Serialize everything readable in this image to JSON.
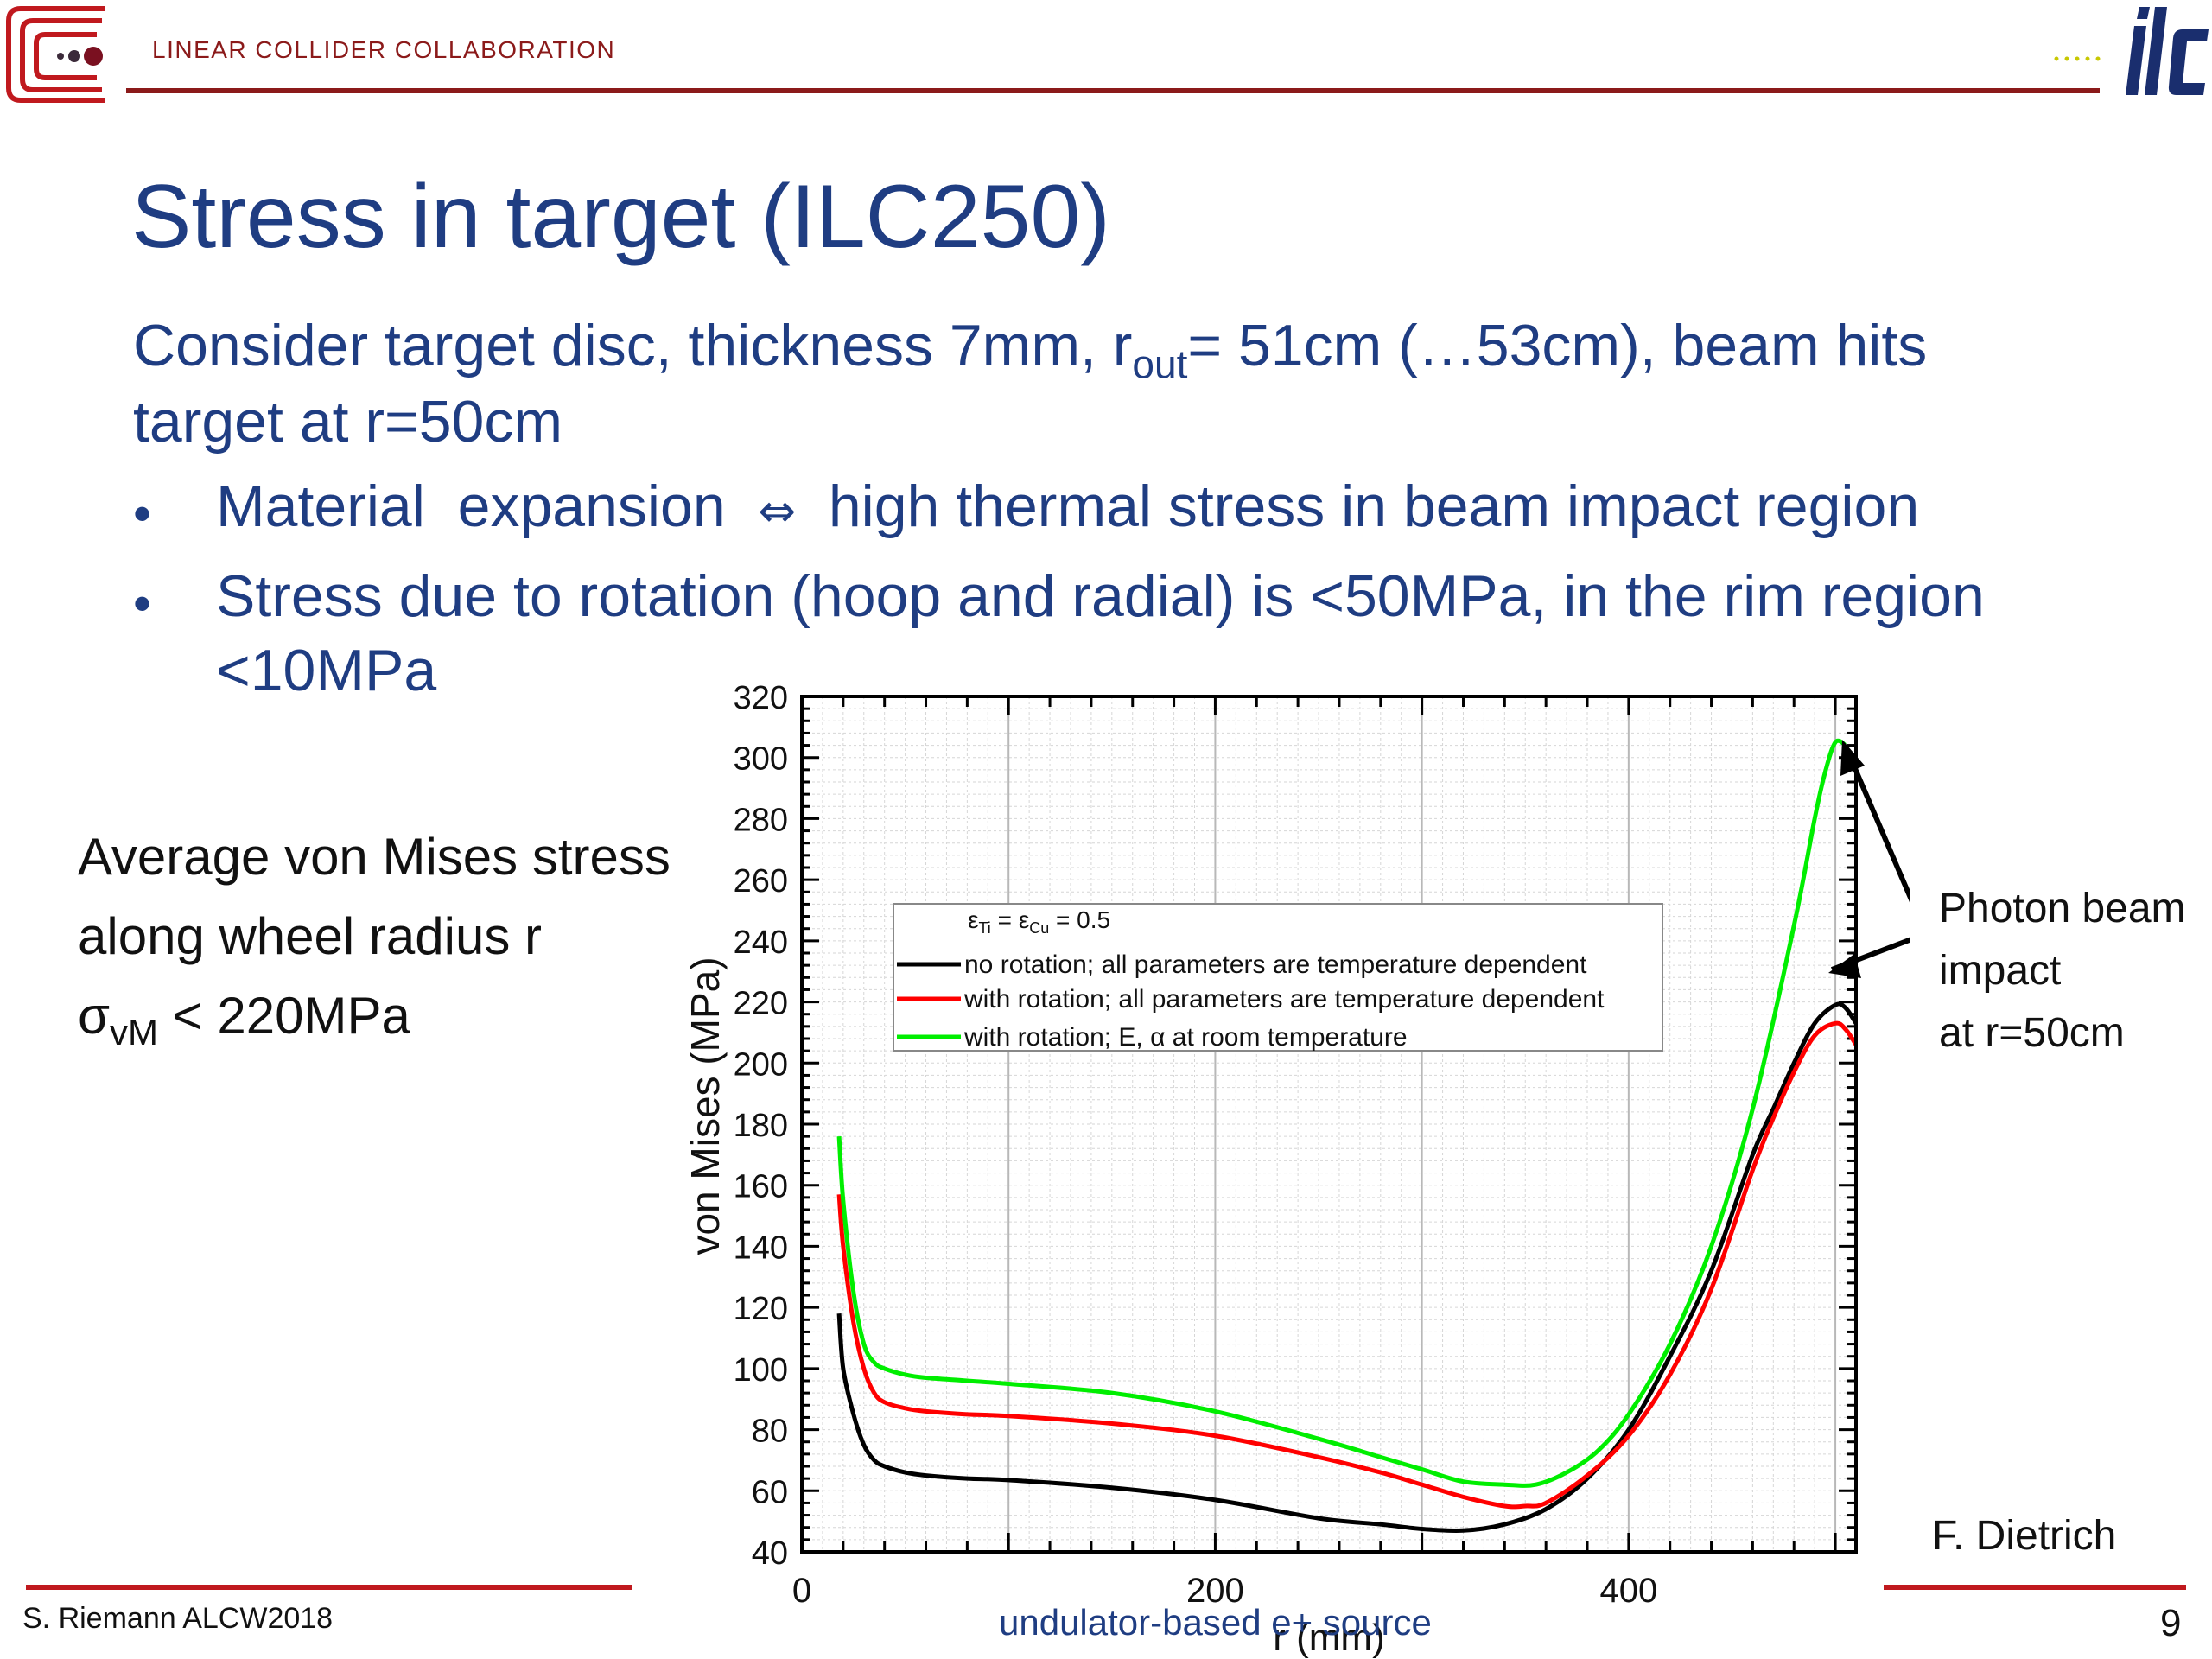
{
  "header": {
    "collaboration": "LINEAR COLLIDER COLLABORATION",
    "colors": {
      "dark_red": "#8b1a1a",
      "red": "#c0191e",
      "navy": "#1f3d82"
    }
  },
  "title": "Stress in target (ILC250)",
  "intro": {
    "line1_a": "Consider target disc, thickness 7mm, r",
    "line1_sub": "out",
    "line1_b": "= 51cm (…53cm), beam hits",
    "line2": "target at r=50cm"
  },
  "bullets": [
    {
      "bullet": "•",
      "a": "Material  expansion  ",
      "sym": "⇔",
      "b": "  high thermal stress in beam impact region"
    },
    {
      "bullet": "•",
      "text": "Stress due to rotation (hoop and radial)  is <50MPa, in the rim region",
      "cont": "<10MPa"
    }
  ],
  "side_note": {
    "line1": "Average von Mises stress",
    "line2": "along wheel radius r",
    "line3_sym": "σ",
    "line3_sub": "vM",
    "line3_rest": " < 220MPa"
  },
  "annotation": {
    "line1": "Photon beam",
    "line2": "impact",
    "line3": "at r=50cm"
  },
  "credit": "F. Dietrich",
  "footer": {
    "author": "S. Riemann ALCW2018",
    "center": "undulator-based e+ source",
    "page": "9"
  },
  "chart_data": {
    "type": "line",
    "xlabel": "r (mm)",
    "ylabel": "von Mises (MPa)",
    "xlim": [
      0,
      510
    ],
    "ylim": [
      40,
      320
    ],
    "xticks": [
      0,
      200,
      400
    ],
    "yticks": [
      40,
      60,
      80,
      100,
      120,
      140,
      160,
      180,
      200,
      220,
      240,
      260,
      280,
      300,
      320
    ],
    "grid": true,
    "legend": {
      "placement": "upper-center",
      "header": {
        "e1": "ε",
        "s1": "Ti",
        "eq": " = ",
        "e2": "ε",
        "s2": "Cu",
        "val": " = 0.5"
      }
    },
    "series": [
      {
        "name": "no rotation; all parameters are temperature dependent",
        "color": "#000000",
        "x": [
          18,
          20,
          25,
          30,
          35,
          40,
          50,
          60,
          80,
          100,
          150,
          200,
          250,
          280,
          300,
          320,
          340,
          360,
          380,
          400,
          420,
          440,
          460,
          470,
          480,
          490,
          500,
          505,
          510
        ],
        "y": [
          118,
          100,
          85,
          75,
          70,
          68,
          66,
          65,
          64,
          63.5,
          61,
          57,
          51,
          49,
          47.5,
          47,
          49,
          54,
          64,
          80,
          104,
          132,
          170,
          185,
          200,
          213,
          219,
          218,
          213
        ]
      },
      {
        "name": "with rotation; all parameters are temperature dependent",
        "color": "#ff0000",
        "x": [
          18,
          20,
          25,
          30,
          35,
          40,
          50,
          60,
          80,
          100,
          150,
          200,
          250,
          280,
          300,
          320,
          340,
          350,
          360,
          380,
          400,
          420,
          440,
          460,
          470,
          480,
          490,
          500,
          505,
          510
        ],
        "y": [
          157,
          140,
          115,
          100,
          92,
          89,
          87,
          86,
          85,
          84.5,
          82,
          78,
          71,
          66,
          62,
          58,
          55,
          55,
          56,
          65,
          78,
          98,
          126,
          165,
          182,
          197,
          209,
          213,
          211,
          206
        ]
      },
      {
        "name": "with rotation; E, α at room temperature",
        "color": "#00ee00",
        "x": [
          18,
          20,
          25,
          30,
          35,
          40,
          50,
          60,
          80,
          100,
          150,
          200,
          250,
          280,
          300,
          320,
          340,
          355,
          370,
          385,
          400,
          420,
          440,
          460,
          480,
          490,
          495,
          500,
          505
        ],
        "y": [
          176,
          155,
          125,
          108,
          102,
          100,
          98,
          97,
          96,
          95,
          92,
          86,
          77,
          71,
          67,
          63,
          62,
          62,
          66,
          73,
          85,
          108,
          140,
          185,
          245,
          280,
          295,
          305,
          304
        ]
      }
    ]
  }
}
